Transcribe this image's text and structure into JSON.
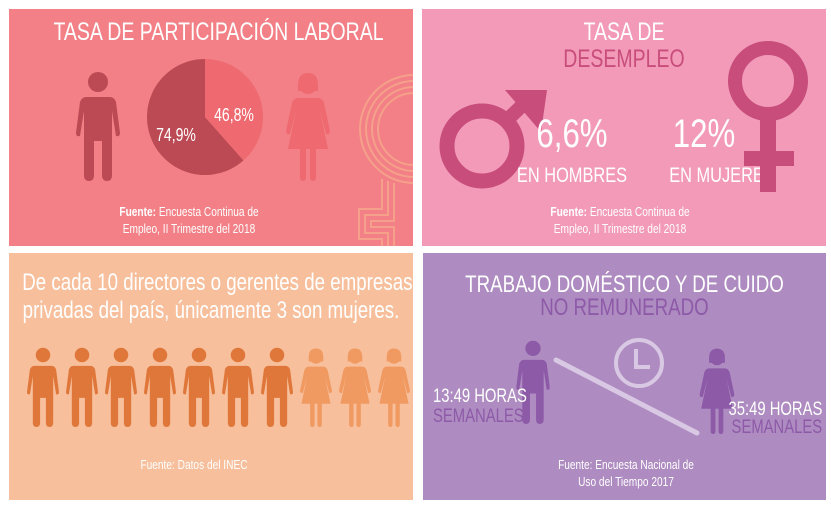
{
  "colors": {
    "participation_bg": "#f28086",
    "unemployment_bg": "#f29ab8",
    "directors_bg": "#f7bf9c",
    "domestic_bg": "#ae8bc0",
    "men_dark": "#bc4a54",
    "women_light": "#ee6a70",
    "unemployment_accent": "#c84d7b",
    "directors_men": "#e0773a",
    "directors_women": "#f09a62",
    "domestic_accent": "#8d5aa8",
    "clock": "#d9c8e3"
  },
  "participation": {
    "title": "TASA DE PARTICIPACIÓN LABORAL",
    "men_value": "74,9%",
    "women_value": "46,8%",
    "source_label": "Fuente:",
    "source_line1": "Encuesta Continua de",
    "source_line2": "Empleo, II Trimestre del 2018",
    "icons": [
      "man-icon",
      "woman-icon",
      "female-symbol-icon"
    ]
  },
  "chart_data": {
    "type": "pie",
    "categories": [
      "Hombres",
      "Mujeres"
    ],
    "values": [
      74.9,
      46.8
    ],
    "labels": [
      "74,9%",
      "46,8%"
    ]
  },
  "unemployment": {
    "title_line1": "TASA DE",
    "title_line2": "DESEMPLEO",
    "men_value": "6,6%",
    "men_label": "EN HOMBRES",
    "women_value": "12%",
    "women_label": "EN MUJERES",
    "source_label": "Fuente:",
    "source_line1": "Encuesta Continua de",
    "source_line2": "Empleo, II Trimestre del 2018",
    "icons": [
      "male-symbol-icon",
      "female-symbol-icon"
    ]
  },
  "directors": {
    "line1": "De cada 10 directores o gerentes de empresas",
    "line2": "privadas del país, únicamente 3 son mujeres.",
    "total": 10,
    "women": 3,
    "source": "Fuente: Datos del INEC"
  },
  "domestic": {
    "title_line1": "TRABAJO DOMÉSTICO Y DE CUIDO",
    "title_line2": "NO REMUNERADO",
    "men_hours": "13:49 HORAS",
    "men_unit": "SEMANALES",
    "women_hours": "35:49 HORAS",
    "women_unit": "SEMANALES",
    "source_line1": "Fuente: Encuesta Nacional de",
    "source_line2": "Uso del Tiempo 2017",
    "icons": [
      "man-icon",
      "clock-icon",
      "woman-icon"
    ]
  }
}
